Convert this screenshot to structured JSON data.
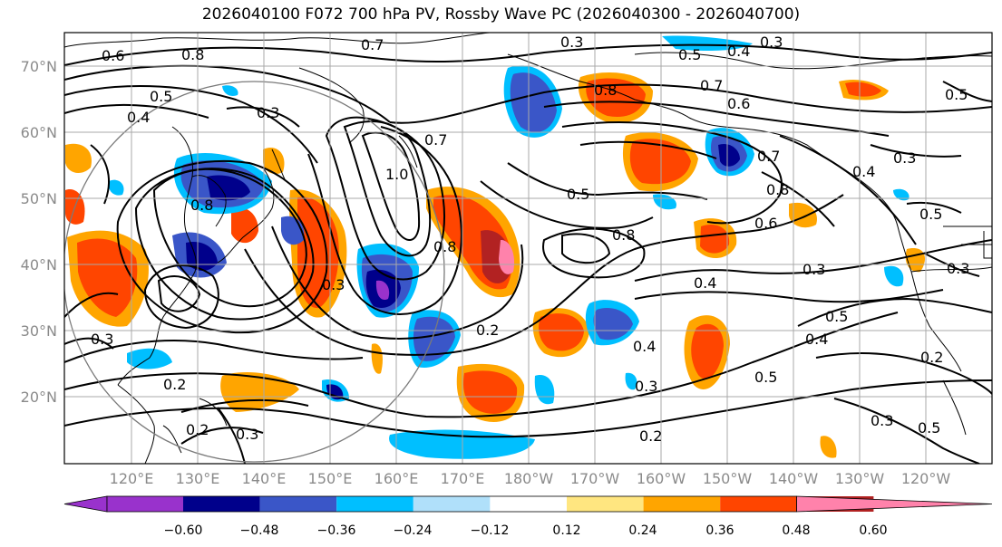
{
  "title": "2026040100 F072 700 hPa PV, Rossby Wave PC (2026040300 - 2026040700)",
  "lat_labels": [
    "70°N",
    "60°N",
    "50°N",
    "40°N",
    "30°N",
    "20°N"
  ],
  "lon_labels": [
    "120°E",
    "130°E",
    "140°E",
    "150°E",
    "160°E",
    "170°E",
    "180°W",
    "170°W",
    "160°W",
    "150°W",
    "140°W",
    "130°W",
    "120°W"
  ],
  "contour_labels": [
    "0.6",
    "0.8",
    "0.7",
    "0.3",
    "0.3",
    "0.4",
    "0.5",
    "0.4",
    "0.3",
    "0.5",
    "0.5",
    "0.8",
    "0.7",
    "0.6",
    "0.7",
    "0.5",
    "0.3",
    "0.4",
    "0.5",
    "0.8",
    "0.6",
    "0.8",
    "0.4",
    "0.3",
    "0.2",
    "0.2",
    "0.3",
    "0.2",
    "0.3",
    "0.5",
    "0.4",
    "0.5",
    "0.2",
    "0.3",
    "0.3",
    "0.5",
    "0.3",
    "0.2",
    "0.3",
    "0.4",
    "0.8",
    "1.0",
    "0.8",
    "0.7"
  ],
  "colorbar": {
    "tick_labels": [
      "−0.60",
      "−0.48",
      "−0.36",
      "−0.24",
      "−0.12",
      "0.12",
      "0.24",
      "0.36",
      "0.48",
      "0.60"
    ],
    "colors": [
      "#9932cc",
      "#00008b",
      "#3a56c8",
      "#00bfff",
      "#b0e0fa",
      "#ffffff",
      "#ffe680",
      "#ffa500",
      "#ff4500",
      "#b22222",
      "#ff82ab"
    ]
  },
  "colors": {
    "land_line": "#000000",
    "grid": "#a9a9a9",
    "axis_text": "#8a8a8a"
  }
}
